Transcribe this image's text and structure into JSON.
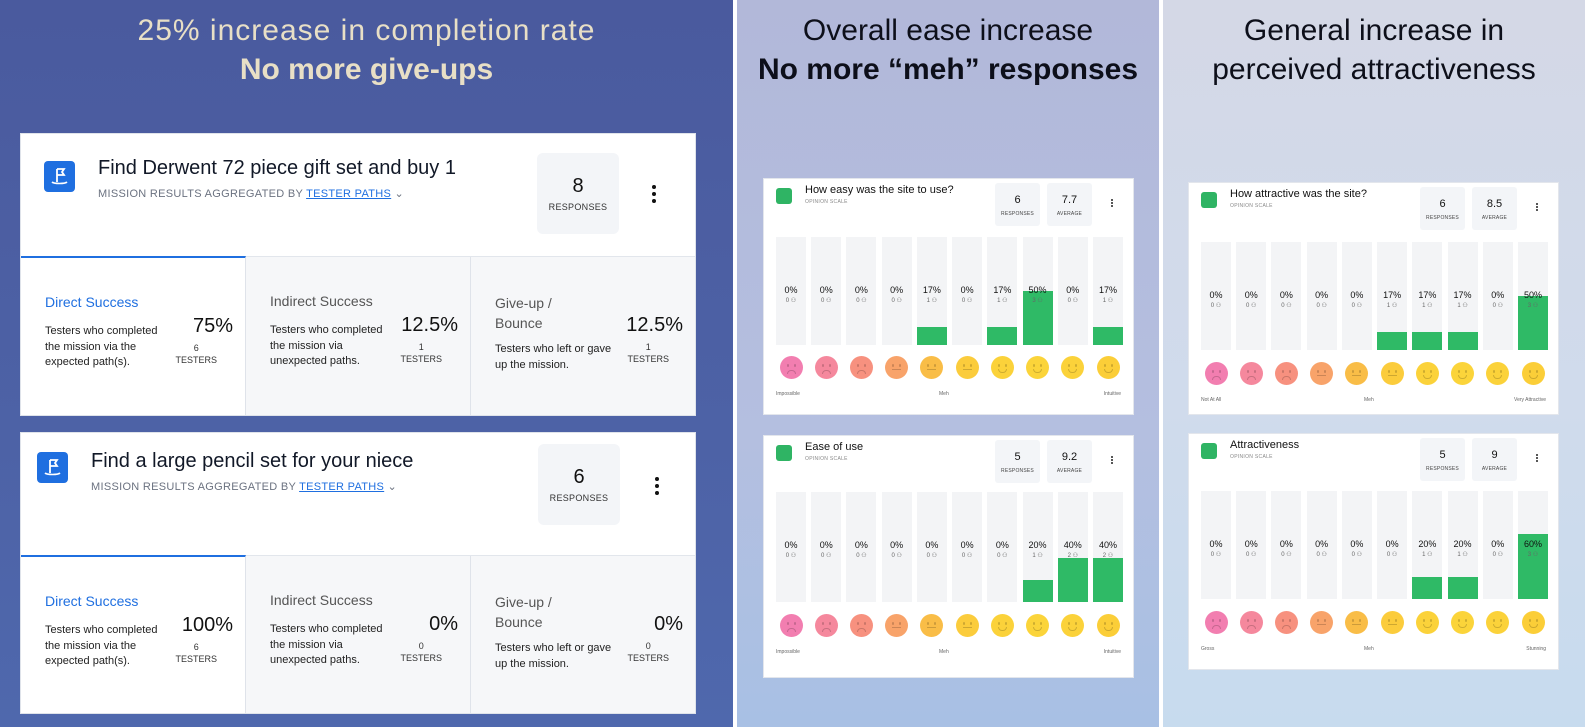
{
  "panels": {
    "completion": {
      "line1": "25% increase in completion rate",
      "line2": "No more give-ups"
    },
    "ease": {
      "line1": "Overall ease increase",
      "line2": "No more “meh” responses"
    },
    "attract": {
      "line1": "General increase in",
      "line2": "perceived attractiveness"
    }
  },
  "missions": [
    {
      "title": "Find Derwent 72 piece gift set and buy 1",
      "subtitle_prefix": "MISSION RESULTS AGGREGATED BY",
      "subtitle_link": "TESTER PATHS",
      "responses": "8",
      "responses_label": "RESPONSES",
      "metrics": [
        {
          "name": "Direct Success",
          "desc": "Testers who completed the mission via the expected path(s).",
          "pct": "75%",
          "count": "6",
          "count_label": "TESTERS"
        },
        {
          "name": "Indirect Success",
          "desc": "Testers who completed the mission via unexpected paths.",
          "pct": "12.5%",
          "count": "1",
          "count_label": "TESTERS"
        },
        {
          "name": "Give-up / Bounce",
          "desc": "Testers who left or gave up the mission.",
          "pct": "12.5%",
          "count": "1",
          "count_label": "TESTERS"
        }
      ]
    },
    {
      "title": "Find a large pencil set for your niece",
      "subtitle_prefix": "MISSION RESULTS AGGREGATED BY",
      "subtitle_link": "TESTER PATHS",
      "responses": "6",
      "responses_label": "RESPONSES",
      "metrics": [
        {
          "name": "Direct Success",
          "desc": "Testers who completed the mission via the expected path(s).",
          "pct": "100%",
          "count": "6",
          "count_label": "TESTERS"
        },
        {
          "name": "Indirect Success",
          "desc": "Testers who completed the mission via unexpected paths.",
          "pct": "0%",
          "count": "0",
          "count_label": "TESTERS"
        },
        {
          "name": "Give-up / Bounce",
          "desc": "Testers who left or gave up the mission.",
          "pct": "0%",
          "count": "0",
          "count_label": "TESTERS"
        }
      ]
    }
  ],
  "opinions": [
    {
      "title": "How easy was the site to use?",
      "subtitle": "OPINION SCALE",
      "responses": "6",
      "responses_label": "RESPONSES",
      "average": "7.7",
      "average_label": "AVERAGE",
      "scale": [
        "Impossible",
        "Meh",
        "Intuitive"
      ],
      "bars": [
        {
          "pct": "0%",
          "cnt": "0 ⚇",
          "v": 0
        },
        {
          "pct": "0%",
          "cnt": "0 ⚇",
          "v": 0
        },
        {
          "pct": "0%",
          "cnt": "0 ⚇",
          "v": 0
        },
        {
          "pct": "0%",
          "cnt": "0 ⚇",
          "v": 0
        },
        {
          "pct": "17%",
          "cnt": "1 ⚇",
          "v": 17
        },
        {
          "pct": "0%",
          "cnt": "0 ⚇",
          "v": 0
        },
        {
          "pct": "17%",
          "cnt": "1 ⚇",
          "v": 17
        },
        {
          "pct": "50%",
          "cnt": "3 ⚇",
          "v": 50
        },
        {
          "pct": "0%",
          "cnt": "0 ⚇",
          "v": 0
        },
        {
          "pct": "17%",
          "cnt": "1 ⚇",
          "v": 17
        }
      ]
    },
    {
      "title": "How attractive was the site?",
      "subtitle": "OPINION SCALE",
      "responses": "6",
      "responses_label": "RESPONSES",
      "average": "8.5",
      "average_label": "AVERAGE",
      "scale": [
        "Not At All",
        "Meh",
        "Very Attractive"
      ],
      "bars": [
        {
          "pct": "0%",
          "cnt": "0 ⚇",
          "v": 0
        },
        {
          "pct": "0%",
          "cnt": "0 ⚇",
          "v": 0
        },
        {
          "pct": "0%",
          "cnt": "0 ⚇",
          "v": 0
        },
        {
          "pct": "0%",
          "cnt": "0 ⚇",
          "v": 0
        },
        {
          "pct": "0%",
          "cnt": "0 ⚇",
          "v": 0
        },
        {
          "pct": "17%",
          "cnt": "1 ⚇",
          "v": 17
        },
        {
          "pct": "17%",
          "cnt": "1 ⚇",
          "v": 17
        },
        {
          "pct": "17%",
          "cnt": "1 ⚇",
          "v": 17
        },
        {
          "pct": "0%",
          "cnt": "0 ⚇",
          "v": 0
        },
        {
          "pct": "50%",
          "cnt": "3 ⚇",
          "v": 50
        }
      ]
    },
    {
      "title": "Ease of use",
      "subtitle": "OPINION SCALE",
      "responses": "5",
      "responses_label": "RESPONSES",
      "average": "9.2",
      "average_label": "AVERAGE",
      "scale": [
        "Impossible",
        "Meh",
        "Intuitive"
      ],
      "bars": [
        {
          "pct": "0%",
          "cnt": "0 ⚇",
          "v": 0
        },
        {
          "pct": "0%",
          "cnt": "0 ⚇",
          "v": 0
        },
        {
          "pct": "0%",
          "cnt": "0 ⚇",
          "v": 0
        },
        {
          "pct": "0%",
          "cnt": "0 ⚇",
          "v": 0
        },
        {
          "pct": "0%",
          "cnt": "0 ⚇",
          "v": 0
        },
        {
          "pct": "0%",
          "cnt": "0 ⚇",
          "v": 0
        },
        {
          "pct": "0%",
          "cnt": "0 ⚇",
          "v": 0
        },
        {
          "pct": "20%",
          "cnt": "1 ⚇",
          "v": 20
        },
        {
          "pct": "40%",
          "cnt": "2 ⚇",
          "v": 40
        },
        {
          "pct": "40%",
          "cnt": "2 ⚇",
          "v": 40
        }
      ]
    },
    {
      "title": "Attractiveness",
      "subtitle": "OPINION SCALE",
      "responses": "5",
      "responses_label": "RESPONSES",
      "average": "9",
      "average_label": "AVERAGE",
      "scale": [
        "Gross",
        "Meh",
        "Stunning"
      ],
      "bars": [
        {
          "pct": "0%",
          "cnt": "0 ⚇",
          "v": 0
        },
        {
          "pct": "0%",
          "cnt": "0 ⚇",
          "v": 0
        },
        {
          "pct": "0%",
          "cnt": "0 ⚇",
          "v": 0
        },
        {
          "pct": "0%",
          "cnt": "0 ⚇",
          "v": 0
        },
        {
          "pct": "0%",
          "cnt": "0 ⚇",
          "v": 0
        },
        {
          "pct": "0%",
          "cnt": "0 ⚇",
          "v": 0
        },
        {
          "pct": "20%",
          "cnt": "1 ⚇",
          "v": 20
        },
        {
          "pct": "20%",
          "cnt": "1 ⚇",
          "v": 20
        },
        {
          "pct": "0%",
          "cnt": "0 ⚇",
          "v": 0
        },
        {
          "pct": "60%",
          "cnt": "3 ⚇",
          "v": 60
        }
      ]
    }
  ],
  "colors": {
    "accent": "#1f6fe0",
    "bar_fill": "#2fba66",
    "faces": [
      "#f27eb0",
      "#f5889d",
      "#f7917f",
      "#f8a36a",
      "#f9bd47",
      "#fbcc3c",
      "#fbd23a",
      "#fbd43a",
      "#fbd23a",
      "#fbce38"
    ]
  }
}
